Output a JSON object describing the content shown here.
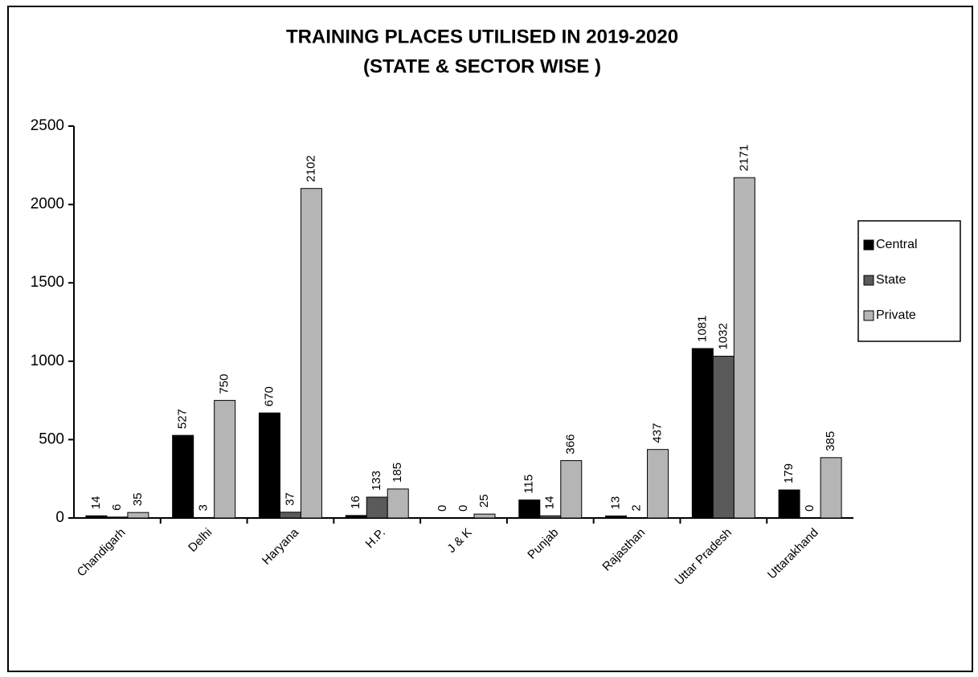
{
  "chart_data": {
    "type": "bar",
    "title": "TRAINING PLACES UTILISED IN 2019-2020",
    "subtitle": "(STATE & SECTOR WISE )",
    "categories": [
      "Chandigarh",
      "Delhi",
      "Haryana",
      "H.P.",
      "J & K",
      "Punjab",
      "Rajasthan",
      "Uttar Pradesh",
      "Uttarakhand"
    ],
    "series": [
      {
        "name": "Central",
        "color": "#000000",
        "values": [
          14,
          527,
          670,
          16,
          0,
          115,
          13,
          1081,
          179
        ]
      },
      {
        "name": "State",
        "color": "#5a5a5a",
        "values": [
          6,
          3,
          37,
          133,
          0,
          14,
          2,
          1032,
          0
        ]
      },
      {
        "name": "Private",
        "color": "#b5b5b5",
        "values": [
          35,
          750,
          2102,
          185,
          25,
          366,
          437,
          2171,
          385
        ]
      }
    ],
    "ylim": [
      0,
      2500
    ],
    "yticks": [
      0,
      500,
      1000,
      1500,
      2000,
      2500
    ],
    "grid": false,
    "legend": "right"
  }
}
